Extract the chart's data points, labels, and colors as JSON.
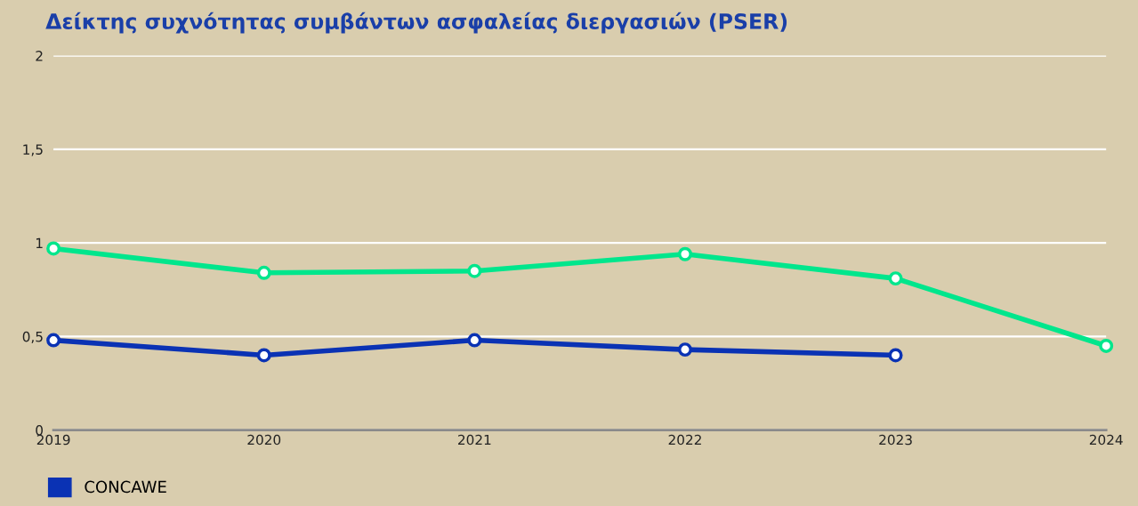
{
  "chart_data": {
    "type": "line",
    "title": "Δείκτης συχνότητας συμβάντων ασφαλείας διεργασιών (PSER)",
    "x": [
      2019,
      2020,
      2021,
      2022,
      2023,
      2024
    ],
    "xlim": [
      2019,
      2024
    ],
    "xticks": [
      2019,
      2020,
      2021,
      2022,
      2023,
      2024
    ],
    "ylim": [
      0,
      2
    ],
    "yticks": [
      {
        "value": 0,
        "label": "0"
      },
      {
        "value": 0.5,
        "label": "0,5"
      },
      {
        "value": 1,
        "label": "1"
      },
      {
        "value": 1.5,
        "label": "1,5"
      },
      {
        "value": 2,
        "label": "2"
      }
    ],
    "grid": "y",
    "legend": "bottom left",
    "marker": "circle",
    "line_style": "solid",
    "series": [
      {
        "name": "CONCAWE",
        "color": "#0a32b4",
        "values": [
          0.48,
          0.4,
          0.48,
          0.43,
          0.4,
          null
        ]
      },
      {
        "color": "#00e68c",
        "values": [
          0.97,
          0.84,
          0.85,
          0.94,
          0.81,
          0.45
        ]
      }
    ]
  }
}
